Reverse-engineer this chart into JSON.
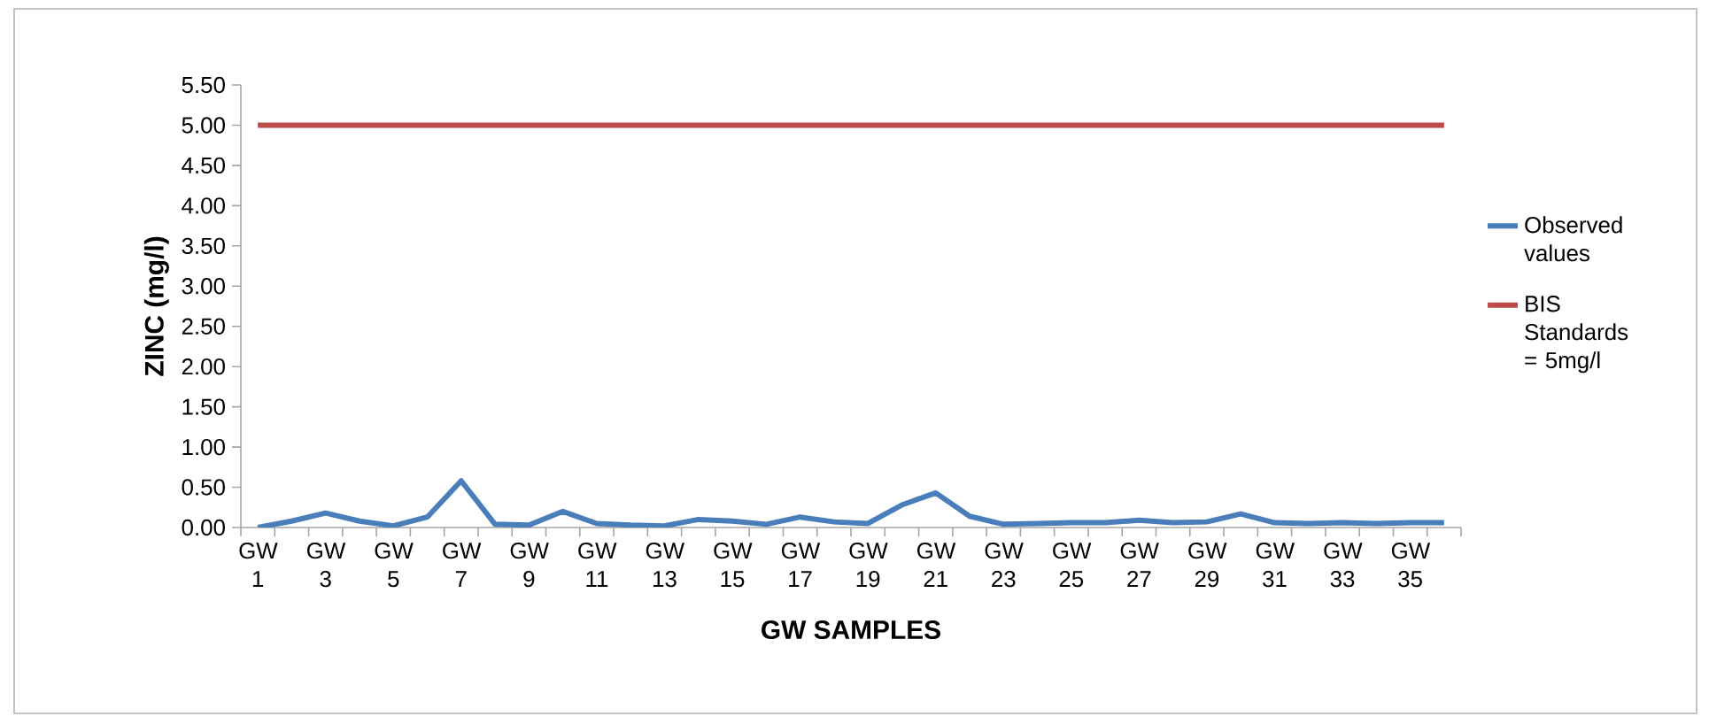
{
  "chart_data": {
    "type": "line",
    "xlabel": "GW SAMPLES",
    "ylabel": "ZINC (mg/l)",
    "categories": [
      "GW 1",
      null,
      "GW 3",
      null,
      "GW 5",
      null,
      "GW 7",
      null,
      "GW 9",
      null,
      "GW 11",
      null,
      "GW 13",
      null,
      "GW 15",
      null,
      "GW 17",
      null,
      "GW 19",
      null,
      "GW 21",
      null,
      "GW 23",
      null,
      "GW 25",
      null,
      "GW 27",
      null,
      "GW 29",
      null,
      "GW 31",
      null,
      "GW 33",
      null,
      "GW 35",
      null
    ],
    "series": [
      {
        "name": "Observed values",
        "color": "#4a7ebb",
        "values": [
          0.0,
          0.08,
          0.18,
          0.08,
          0.02,
          0.13,
          0.58,
          0.04,
          0.03,
          0.2,
          0.05,
          0.03,
          0.02,
          0.1,
          0.08,
          0.04,
          0.13,
          0.07,
          0.05,
          0.28,
          0.43,
          0.14,
          0.04,
          0.05,
          0.06,
          0.06,
          0.09,
          0.06,
          0.07,
          0.17,
          0.06,
          0.05,
          0.06,
          0.05,
          0.06,
          0.06
        ]
      },
      {
        "name": "BIS Standards = 5mg/l",
        "color": "#be4b48",
        "values": [
          5,
          5,
          5,
          5,
          5,
          5,
          5,
          5,
          5,
          5,
          5,
          5,
          5,
          5,
          5,
          5,
          5,
          5,
          5,
          5,
          5,
          5,
          5,
          5,
          5,
          5,
          5,
          5,
          5,
          5,
          5,
          5,
          5,
          5,
          5,
          5
        ]
      }
    ],
    "ylim": [
      0,
      5.5
    ],
    "yticks": [
      {
        "value": 0,
        "label": "0.00"
      },
      {
        "value": 0.5,
        "label": "0.50"
      },
      {
        "value": 1,
        "label": "1.00"
      },
      {
        "value": 1.5,
        "label": "1.50"
      },
      {
        "value": 2,
        "label": "2.00"
      },
      {
        "value": 2.5,
        "label": "2.50"
      },
      {
        "value": 3,
        "label": "3.00"
      },
      {
        "value": 3.5,
        "label": "3.50"
      },
      {
        "value": 4,
        "label": "4.00"
      },
      {
        "value": 4.5,
        "label": "4.50"
      },
      {
        "value": 5,
        "label": "5.00"
      },
      {
        "value": 5.5,
        "label": "5.50"
      }
    ],
    "grid": false,
    "legend": "right",
    "marker": "none",
    "line_style": "solid"
  }
}
